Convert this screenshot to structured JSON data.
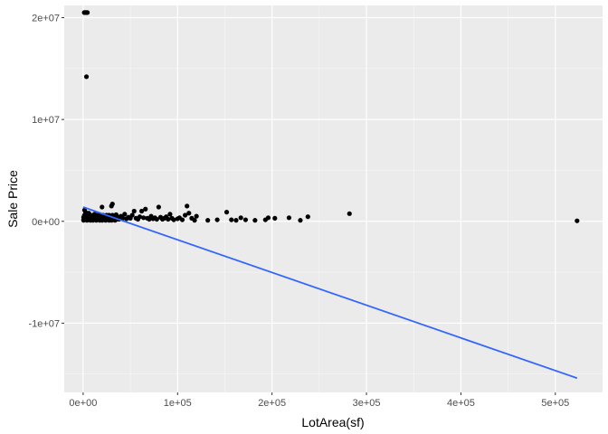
{
  "chart_data": {
    "type": "scatter",
    "title": "",
    "xlabel": "LotArea(sf)",
    "ylabel": "Sale Price",
    "xlim": [
      -20000,
      550000
    ],
    "ylim": [
      -16800000,
      21200000
    ],
    "x_ticks": [
      {
        "value": 0,
        "label": "0e+00"
      },
      {
        "value": 100000,
        "label": "1e+05"
      },
      {
        "value": 200000,
        "label": "2e+05"
      },
      {
        "value": 300000,
        "label": "3e+05"
      },
      {
        "value": 400000,
        "label": "4e+05"
      },
      {
        "value": 500000,
        "label": "5e+05"
      }
    ],
    "y_ticks": [
      {
        "value": -10000000,
        "label": "-1e+07"
      },
      {
        "value": 0,
        "label": "0e+00"
      },
      {
        "value": 10000000,
        "label": "1e+07"
      },
      {
        "value": 20000000,
        "label": "2e+07"
      }
    ],
    "grid": true,
    "colors": {
      "panel": "#ebebeb",
      "grid_major": "#ffffff",
      "points": "#000000",
      "trend_line": "#3366ff"
    },
    "points": [
      [
        1200,
        20500000
      ],
      [
        2200,
        20500000
      ],
      [
        3200,
        20500000
      ],
      [
        4500,
        20500000
      ],
      [
        3500,
        14200000
      ],
      [
        1500,
        1100000
      ],
      [
        2500,
        900000
      ],
      [
        3000,
        700000
      ],
      [
        4000,
        500000
      ],
      [
        5000,
        300000
      ],
      [
        6000,
        800000
      ],
      [
        7000,
        450000
      ],
      [
        8000,
        600000
      ],
      [
        9000,
        250000
      ],
      [
        10000,
        500000
      ],
      [
        11000,
        350000
      ],
      [
        12000,
        700000
      ],
      [
        13000,
        400000
      ],
      [
        14000,
        200000
      ],
      [
        15000,
        600000
      ],
      [
        16000,
        350000
      ],
      [
        17000,
        500000
      ],
      [
        18000,
        300000
      ],
      [
        19000,
        450000
      ],
      [
        20000,
        250000
      ],
      [
        20000,
        1400000
      ],
      [
        21000,
        600000
      ],
      [
        22000,
        400000
      ],
      [
        23000,
        300000
      ],
      [
        24000,
        550000
      ],
      [
        25000,
        350000
      ],
      [
        26000,
        200000
      ],
      [
        27000,
        450000
      ],
      [
        28000,
        300000
      ],
      [
        29000,
        500000
      ],
      [
        30000,
        1500000
      ],
      [
        31000,
        1700000
      ],
      [
        32000,
        400000
      ],
      [
        33000,
        250000
      ],
      [
        35000,
        650000
      ],
      [
        36000,
        350000
      ],
      [
        38000,
        200000
      ],
      [
        40000,
        500000
      ],
      [
        42000,
        300000
      ],
      [
        44000,
        700000
      ],
      [
        46000,
        250000
      ],
      [
        48000,
        400000
      ],
      [
        50000,
        300000
      ],
      [
        52000,
        600000
      ],
      [
        54000,
        1000000
      ],
      [
        56000,
        300000
      ],
      [
        58000,
        200000
      ],
      [
        60000,
        450000
      ],
      [
        62000,
        1000000
      ],
      [
        64000,
        350000
      ],
      [
        66000,
        1200000
      ],
      [
        68000,
        300000
      ],
      [
        70000,
        200000
      ],
      [
        72000,
        500000
      ],
      [
        74000,
        250000
      ],
      [
        76000,
        350000
      ],
      [
        78000,
        200000
      ],
      [
        80000,
        1400000
      ],
      [
        82000,
        400000
      ],
      [
        84000,
        200000
      ],
      [
        86000,
        300000
      ],
      [
        88000,
        450000
      ],
      [
        90000,
        200000
      ],
      [
        92000,
        700000
      ],
      [
        94000,
        300000
      ],
      [
        96000,
        150000
      ],
      [
        100000,
        250000
      ],
      [
        102000,
        350000
      ],
      [
        105000,
        150000
      ],
      [
        108000,
        600000
      ],
      [
        110000,
        1500000
      ],
      [
        112000,
        800000
      ],
      [
        115000,
        300000
      ],
      [
        118000,
        100000
      ],
      [
        120000,
        500000
      ],
      [
        132000,
        100000
      ],
      [
        142000,
        150000
      ],
      [
        152000,
        900000
      ],
      [
        157000,
        150000
      ],
      [
        162000,
        100000
      ],
      [
        167000,
        350000
      ],
      [
        172000,
        150000
      ],
      [
        182000,
        100000
      ],
      [
        193000,
        150000
      ],
      [
        196000,
        350000
      ],
      [
        203000,
        300000
      ],
      [
        218000,
        350000
      ],
      [
        230000,
        100000
      ],
      [
        238000,
        450000
      ],
      [
        282000,
        750000
      ],
      [
        523000,
        50000
      ]
    ],
    "trend_line": {
      "x": [
        0,
        523000
      ],
      "y": [
        1400000,
        -15400000
      ]
    }
  }
}
